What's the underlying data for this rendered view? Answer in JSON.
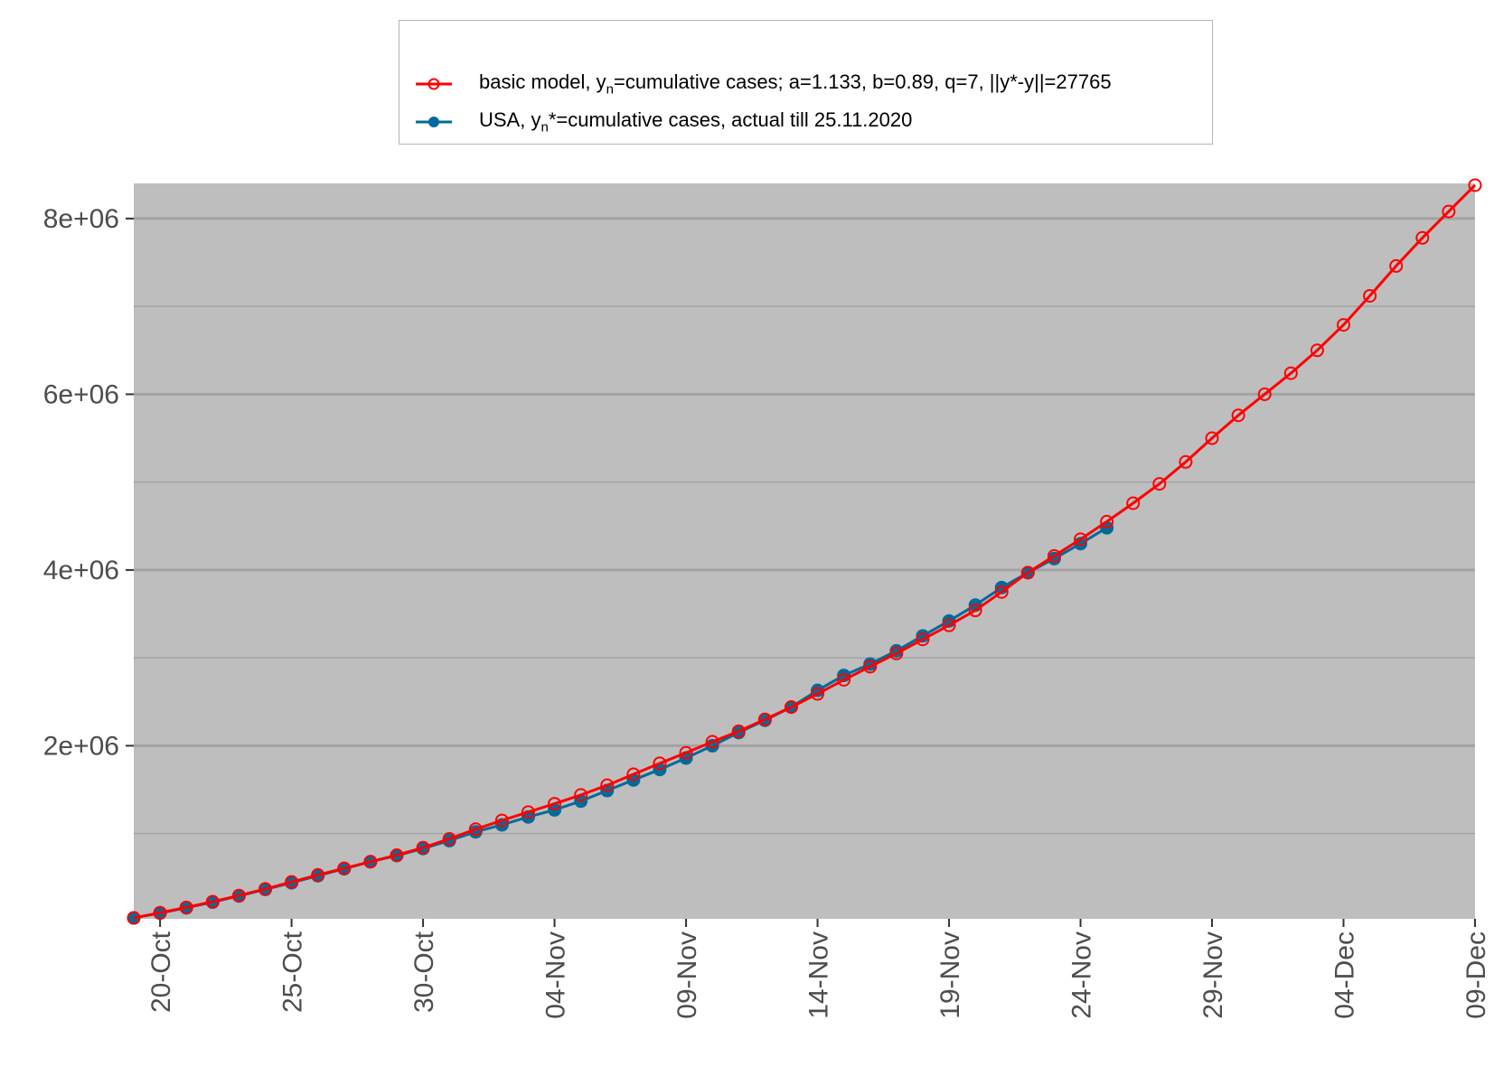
{
  "chart_data": {
    "type": "line",
    "x_axis": {
      "type": "date",
      "range": [
        "2020-10-19",
        "2020-12-09"
      ],
      "tick_labels": [
        "20-Oct",
        "25-Oct",
        "30-Oct",
        "04-Nov",
        "09-Nov",
        "14-Nov",
        "19-Nov",
        "24-Nov",
        "29-Nov",
        "04-Dec",
        "09-Dec"
      ],
      "tick_dates": [
        "2020-10-20",
        "2020-10-25",
        "2020-10-30",
        "2020-11-04",
        "2020-11-09",
        "2020-11-14",
        "2020-11-19",
        "2020-11-24",
        "2020-11-29",
        "2020-12-04",
        "2020-12-09"
      ]
    },
    "y_axis": {
      "range": [
        30000,
        8400000
      ],
      "major_ticks": [
        2000000,
        4000000,
        6000000,
        8000000
      ],
      "minor_grid": [
        1000000,
        3000000,
        5000000,
        7000000
      ],
      "tick_labels": [
        "2e+06",
        "4e+06",
        "6e+06",
        "8e+06"
      ]
    },
    "grid": true,
    "legend_position": "top",
    "background": "#bebebe",
    "series": [
      {
        "name_parts": [
          "basic model,  y",
          "n",
          "=cumulative cases; a=1.133, b=0.89, q=7, ||y*-y||=27765"
        ],
        "color": "#ff0000",
        "marker": "open-circle",
        "start_date": "2020-10-19",
        "values": [
          40000,
          100000,
          160000,
          225000,
          295000,
          370000,
          450000,
          530000,
          605000,
          680000,
          755000,
          840000,
          940000,
          1050000,
          1150000,
          1245000,
          1340000,
          1440000,
          1550000,
          1675000,
          1800000,
          1920000,
          2045000,
          2165000,
          2300000,
          2440000,
          2590000,
          2750000,
          2900000,
          3050000,
          3210000,
          3370000,
          3540000,
          3750000,
          3970000,
          4160000,
          4350000,
          4550000,
          4760000,
          4980000,
          5230000,
          5500000,
          5760000,
          6000000,
          6240000,
          6500000,
          6790000,
          7120000,
          7460000,
          7780000,
          8080000,
          8380000
        ]
      },
      {
        "name_parts": [
          "USA, y",
          "n",
          "*=cumulative cases, actual till 25.11.2020"
        ],
        "color": "#006b9b",
        "marker": "filled-circle",
        "start_date": "2020-10-19",
        "values": [
          40000,
          95000,
          155000,
          220000,
          290000,
          365000,
          440000,
          520000,
          600000,
          680000,
          750000,
          830000,
          920000,
          1020000,
          1100000,
          1190000,
          1270000,
          1370000,
          1490000,
          1610000,
          1730000,
          1860000,
          2000000,
          2150000,
          2290000,
          2440000,
          2630000,
          2800000,
          2930000,
          3080000,
          3250000,
          3420000,
          3600000,
          3800000,
          3970000,
          4130000,
          4300000,
          4480000
        ]
      }
    ]
  }
}
